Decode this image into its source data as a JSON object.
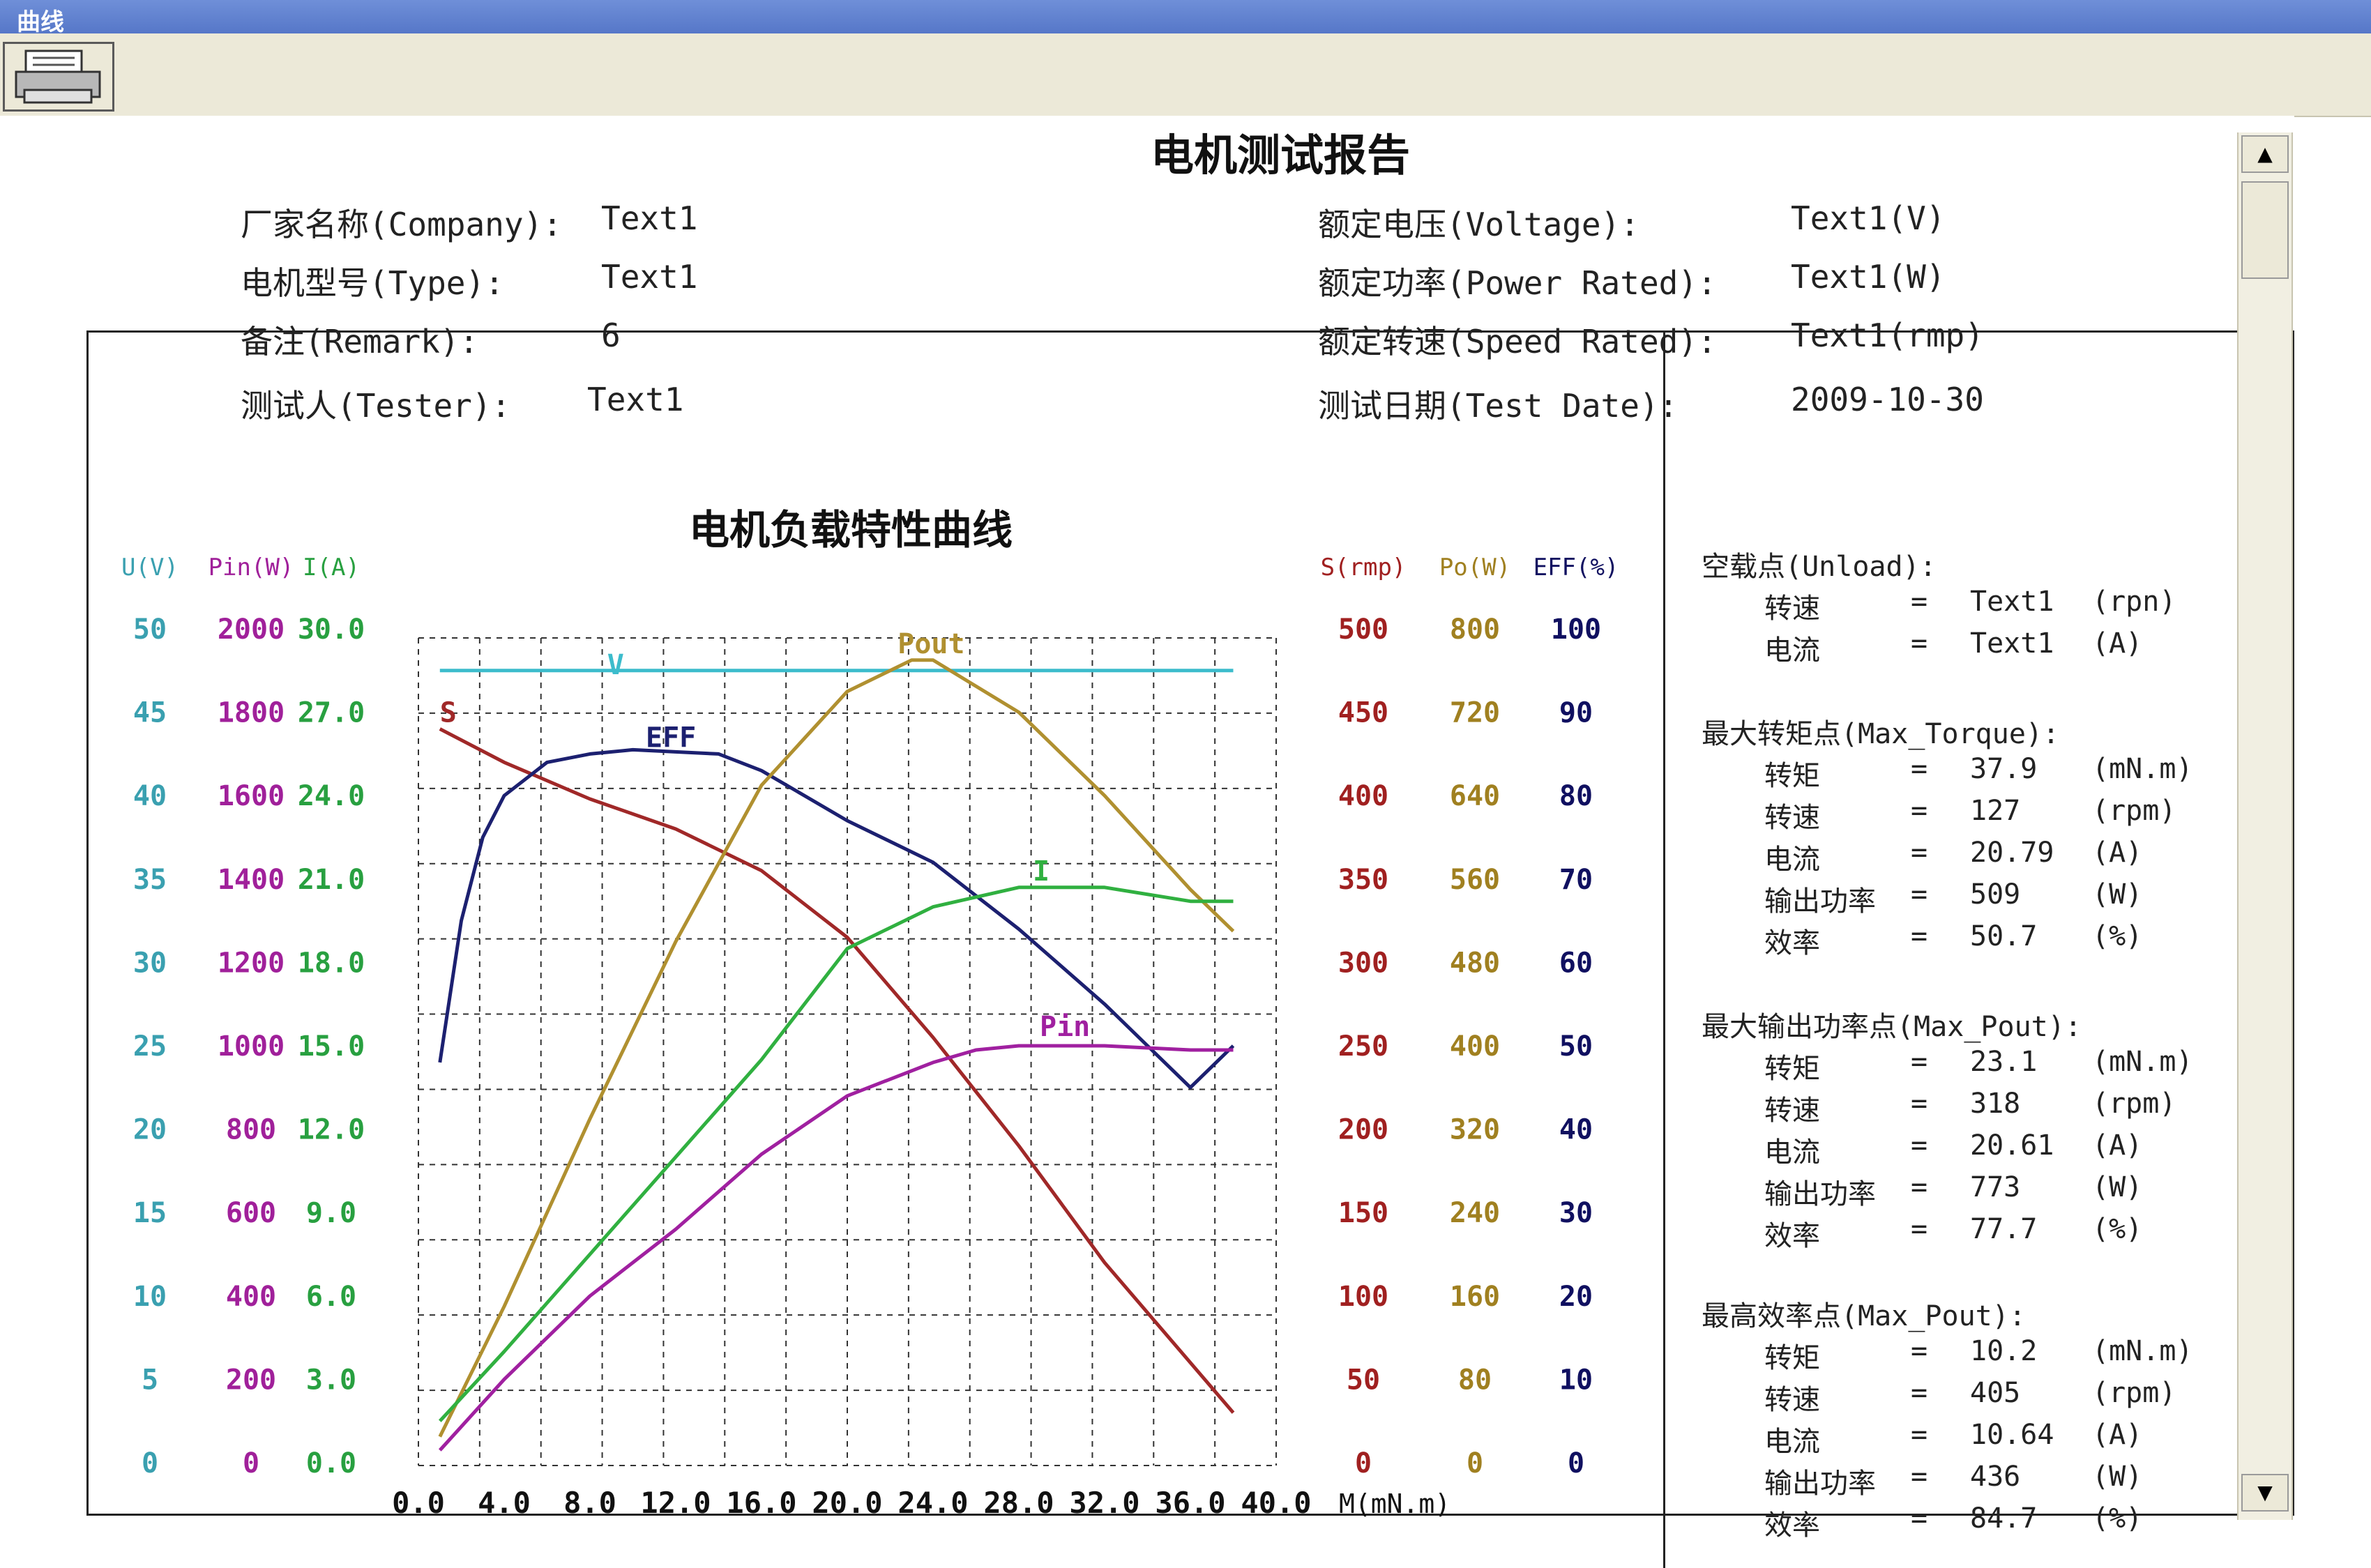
{
  "window": {
    "title": "曲线"
  },
  "toolbar": {
    "print_icon": "printer-icon"
  },
  "report": {
    "title": "电机测试报告",
    "fields": [
      {
        "label": "厂家名称(Company):",
        "value": "Text1"
      },
      {
        "label": "电机型号(Type):",
        "value": "Text1"
      },
      {
        "label": "备注(Remark):",
        "value": "6"
      },
      {
        "label": "测试人(Tester):",
        "value": "Text1"
      },
      {
        "label": "额定电压(Voltage):",
        "value": "Text1(V)"
      },
      {
        "label": "额定功率(Power Rated):",
        "value": "Text1(W)"
      },
      {
        "label": "额定转速(Speed Rated):",
        "value": "Text1(rmp)"
      },
      {
        "label": "测试日期(Test Date):",
        "value": "2009-10-30"
      }
    ]
  },
  "chart_data": {
    "type": "line",
    "title": "电机负载特性曲线",
    "xlabel": "M(mN.m)",
    "x_ticks": [
      "0.0",
      "4.0",
      "8.0",
      "12.0",
      "16.0",
      "20.0",
      "24.0",
      "28.0",
      "32.0",
      "36.0",
      "40.0"
    ],
    "xlim": [
      0,
      40
    ],
    "left_axes": [
      {
        "label": "U(V)",
        "color": "#3aa0b0",
        "ticks": [
          "50",
          "45",
          "40",
          "35",
          "30",
          "25",
          "20",
          "15",
          "10",
          "5",
          "0"
        ]
      },
      {
        "label": "Pin(W)",
        "color": "#a0209a",
        "ticks": [
          "2000",
          "1800",
          "1600",
          "1400",
          "1200",
          "1000",
          "800",
          "600",
          "400",
          "200",
          "0"
        ]
      },
      {
        "label": "I(A)",
        "color": "#28a040",
        "ticks": [
          "30.0",
          "27.0",
          "24.0",
          "21.0",
          "18.0",
          "15.0",
          "12.0",
          "9.0",
          "6.0",
          "3.0",
          "0.0"
        ]
      }
    ],
    "right_axes": [
      {
        "label": "S(rmp)",
        "color": "#a02020",
        "ticks": [
          "500",
          "450",
          "400",
          "350",
          "300",
          "250",
          "200",
          "150",
          "100",
          "50",
          "0"
        ]
      },
      {
        "label": "Po(W)",
        "color": "#a08020",
        "ticks": [
          "800",
          "720",
          "640",
          "560",
          "480",
          "400",
          "320",
          "240",
          "160",
          "80",
          "0"
        ]
      },
      {
        "label": "EFF(%)",
        "color": "#101060",
        "ticks": [
          "100",
          "90",
          "80",
          "70",
          "60",
          "50",
          "40",
          "30",
          "20",
          "10",
          "0"
        ]
      }
    ],
    "series": [
      {
        "name": "V",
        "color": "#3cbccc",
        "y_unit": "V",
        "x": [
          1,
          38
        ],
        "y": [
          47.5,
          47.5
        ]
      },
      {
        "name": "S",
        "color": "#a02828",
        "y_unit": "rpm",
        "x": [
          1,
          4,
          8,
          12,
          16,
          20,
          24,
          28,
          32,
          36,
          38
        ],
        "y": [
          440,
          420,
          398,
          380,
          355,
          315,
          255,
          190,
          120,
          60,
          30
        ]
      },
      {
        "name": "EFF",
        "color": "#1c2070",
        "y_unit": "%",
        "x": [
          1,
          2,
          3,
          4,
          6,
          8,
          10,
          14,
          16,
          20,
          24,
          28,
          32,
          36,
          38
        ],
        "y": [
          48,
          65,
          75,
          80,
          84,
          85,
          85.5,
          85,
          83,
          77,
          72,
          64,
          55,
          45,
          50
        ]
      },
      {
        "name": "Pout",
        "color": "#b09030",
        "y_unit": "W",
        "x": [
          1,
          4,
          8,
          12,
          16,
          20,
          23,
          24,
          28,
          32,
          36,
          38
        ],
        "y": [
          25,
          150,
          330,
          500,
          650,
          740,
          770,
          770,
          720,
          640,
          550,
          510
        ]
      },
      {
        "name": "I",
        "color": "#30b040",
        "y_unit": "A",
        "x": [
          1,
          4,
          8,
          12,
          16,
          20,
          24,
          28,
          32,
          36,
          38
        ],
        "y": [
          1.5,
          4,
          7.5,
          11,
          14.5,
          18.5,
          20,
          20.7,
          20.7,
          20.2,
          20.2
        ]
      },
      {
        "name": "Pin",
        "color": "#a020a0",
        "y_unit": "W",
        "x": [
          1,
          4,
          8,
          12,
          16,
          20,
          24,
          26,
          28,
          32,
          36,
          38
        ],
        "y": [
          30,
          200,
          400,
          560,
          740,
          880,
          960,
          990,
          1000,
          1000,
          990,
          990
        ]
      }
    ]
  },
  "panel": {
    "sections": [
      {
        "title": "空载点(Unload):",
        "rows": [
          {
            "k": "转速",
            "v": "Text1",
            "u": "(rpn)"
          },
          {
            "k": "电流",
            "v": "Text1",
            "u": "(A)"
          }
        ]
      },
      {
        "title": "最大转矩点(Max_Torque):",
        "rows": [
          {
            "k": "转矩",
            "v": "37.9",
            "u": "(mN.m)"
          },
          {
            "k": "转速",
            "v": "127",
            "u": "(rpm)"
          },
          {
            "k": "电流",
            "v": "20.79",
            "u": "(A)"
          },
          {
            "k": "输出功率",
            "v": "509",
            "u": "(W)"
          },
          {
            "k": "效率",
            "v": "50.7",
            "u": "(%)"
          }
        ]
      },
      {
        "title": "最大输出功率点(Max_Pout):",
        "rows": [
          {
            "k": "转矩",
            "v": "23.1",
            "u": "(mN.m)"
          },
          {
            "k": "转速",
            "v": "318",
            "u": "(rpm)"
          },
          {
            "k": "电流",
            "v": "20.61",
            "u": "(A)"
          },
          {
            "k": "输出功率",
            "v": "773",
            "u": "(W)"
          },
          {
            "k": "效率",
            "v": "77.7",
            "u": "(%)"
          }
        ]
      },
      {
        "title": "最高效率点(Max_Pout):",
        "rows": [
          {
            "k": "转矩",
            "v": "10.2",
            "u": "(mN.m)"
          },
          {
            "k": "转速",
            "v": "405",
            "u": "(rpm)"
          },
          {
            "k": "电流",
            "v": "10.64",
            "u": "(A)"
          },
          {
            "k": "输出功率",
            "v": "436",
            "u": "(W)"
          },
          {
            "k": "效率",
            "v": "84.7",
            "u": "(%)"
          }
        ]
      }
    ]
  },
  "scrollbar": {
    "up_glyph": "▲",
    "down_glyph": "▼"
  }
}
